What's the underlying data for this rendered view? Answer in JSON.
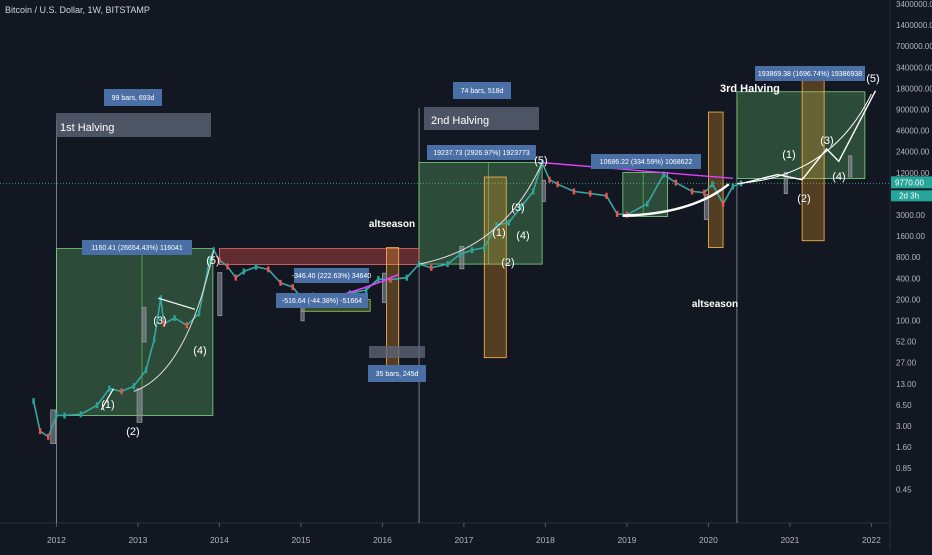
{
  "header": {
    "title": "Bitcoin / U.S. Dollar, 1W, BITSTAMP"
  },
  "chart_data": {
    "type": "candlestick-annotated",
    "symbol": "Bitcoin / U.S. Dollar",
    "interval": "1W",
    "exchange": "BITSTAMP",
    "price_scale": "log",
    "x_ticks": [
      "2012",
      "2013",
      "2014",
      "2015",
      "2016",
      "2017",
      "2018",
      "2019",
      "2020",
      "2021",
      "2022"
    ],
    "y_ticks": [
      "3400000.00",
      "1400000.00",
      "700000.00",
      "340000.00",
      "180000.00",
      "90000.00",
      "46000.00",
      "24000.00",
      "12000.00",
      "6000.00",
      "3000.00",
      "1600.00",
      "800.00",
      "400.00",
      "200.00",
      "100.00",
      "52.00",
      "27.00",
      "13.00",
      "6.50",
      "3.00",
      "1.60",
      "0.85",
      "0.45"
    ],
    "current_price": "9770.00",
    "countdown": "2d 3h",
    "price_path": [
      [
        "2011.72",
        8
      ],
      [
        "2011.80",
        3
      ],
      [
        "2011.90",
        2.5
      ],
      [
        "2012.00",
        5
      ],
      [
        "2012.10",
        5
      ],
      [
        "2012.30",
        5.2
      ],
      [
        "2012.50",
        7
      ],
      [
        "2012.65",
        12
      ],
      [
        "2012.80",
        11
      ],
      [
        "2012.95",
        13
      ],
      [
        "2013.10",
        22
      ],
      [
        "2013.20",
        60
      ],
      [
        "2013.28",
        230
      ],
      [
        "2013.32",
        100
      ],
      [
        "2013.45",
        120
      ],
      [
        "2013.60",
        95
      ],
      [
        "2013.75",
        140
      ],
      [
        "2013.88",
        800
      ],
      [
        "2013.93",
        1100
      ],
      [
        "2014.00",
        800
      ],
      [
        "2014.10",
        650
      ],
      [
        "2014.20",
        450
      ],
      [
        "2014.30",
        550
      ],
      [
        "2014.45",
        640
      ],
      [
        "2014.60",
        590
      ],
      [
        "2014.75",
        380
      ],
      [
        "2014.90",
        330
      ],
      [
        "2015.05",
        200
      ],
      [
        "2015.15",
        250
      ],
      [
        "2015.40",
        240
      ],
      [
        "2015.60",
        270
      ],
      [
        "2015.80",
        300
      ],
      [
        "2015.95",
        430
      ],
      [
        "2016.10",
        420
      ],
      [
        "2016.30",
        450
      ],
      [
        "2016.45",
        700
      ],
      [
        "2016.60",
        620
      ],
      [
        "2016.80",
        700
      ],
      [
        "2016.95",
        960
      ],
      [
        "2017.10",
        1100
      ],
      [
        "2017.25",
        1200
      ],
      [
        "2017.40",
        2500
      ],
      [
        "2017.55",
        2700
      ],
      [
        "2017.70",
        4500
      ],
      [
        "2017.85",
        7500
      ],
      [
        "2017.96",
        19200
      ],
      [
        "2018.05",
        11000
      ],
      [
        "2018.15",
        9500
      ],
      [
        "2018.35",
        7500
      ],
      [
        "2018.55",
        7000
      ],
      [
        "2018.75",
        6500
      ],
      [
        "2018.88",
        3600
      ],
      [
        "2019.00",
        3500
      ],
      [
        "2019.25",
        5000
      ],
      [
        "2019.45",
        13000
      ],
      [
        "2019.60",
        10000
      ],
      [
        "2019.80",
        7500
      ],
      [
        "2019.95",
        7200
      ],
      [
        "2020.05",
        9500
      ],
      [
        "2020.18",
        5000
      ],
      [
        "2020.30",
        8800
      ],
      [
        "2020.40",
        9770
      ]
    ],
    "annotations": {
      "halving_labels": [
        "1st Halving",
        "2nd Halving",
        "3rd Halving"
      ],
      "bar_count_labels": [
        "99 bars, 693d",
        "74 bars, 518d",
        "35 bars, 245d"
      ],
      "range_labels": [
        "1160.41 (26654.43%) 116041",
        "19237.73 (2926.97%) 1923773",
        "10686.22 (334.59%) 1068622",
        "193869.38 (1696.74%) 19386938",
        "-346.40 (222.63%) 34640",
        "-516.64 (-44.38%) -51664"
      ],
      "wave_labels": [
        "(1)",
        "(2)",
        "(3)",
        "(4)",
        "(5)"
      ],
      "season_labels": [
        "altseason",
        "altseason"
      ]
    },
    "colors": {
      "background": "#131722",
      "up": "#26a69a",
      "down": "#ef5350",
      "green_box": "#66bb6a",
      "red_box": "#ef5350",
      "orange_box": "#ffa726",
      "blue_label": "#4a6fa5",
      "magenta_line": "#e040fb",
      "price_line": "#3aa6a0",
      "axis_text": "#b2b5be"
    }
  }
}
